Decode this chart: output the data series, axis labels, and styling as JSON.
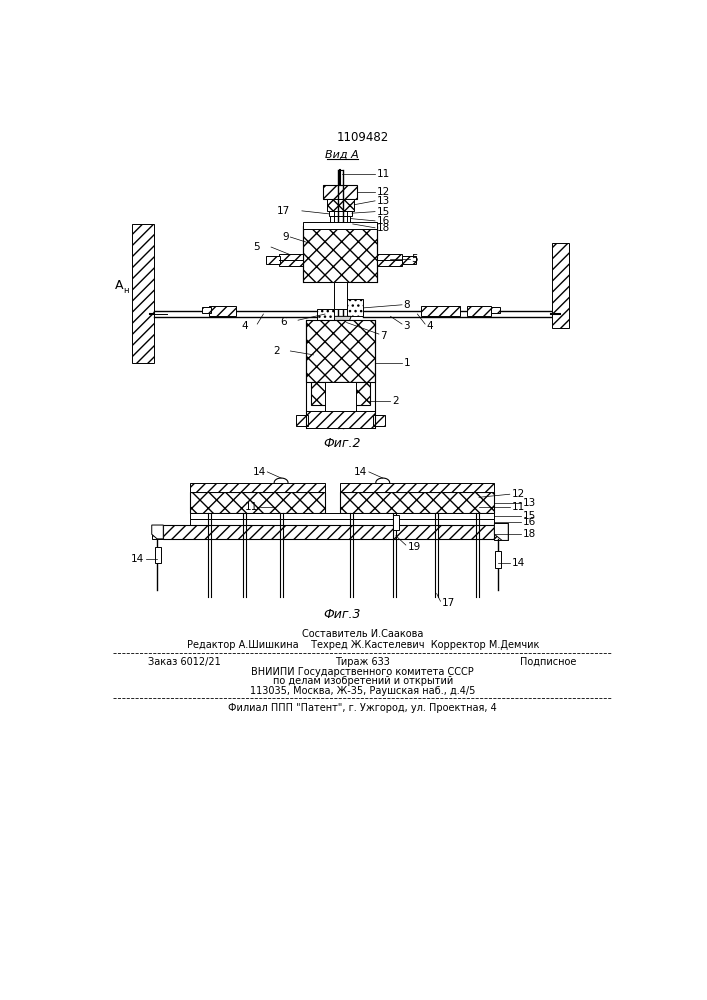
{
  "patent_number": "1109482",
  "view_label": "Вид А",
  "fig2_label": "Фиг.2",
  "fig3_label": "Фиг.3",
  "bg_color": "#ffffff"
}
